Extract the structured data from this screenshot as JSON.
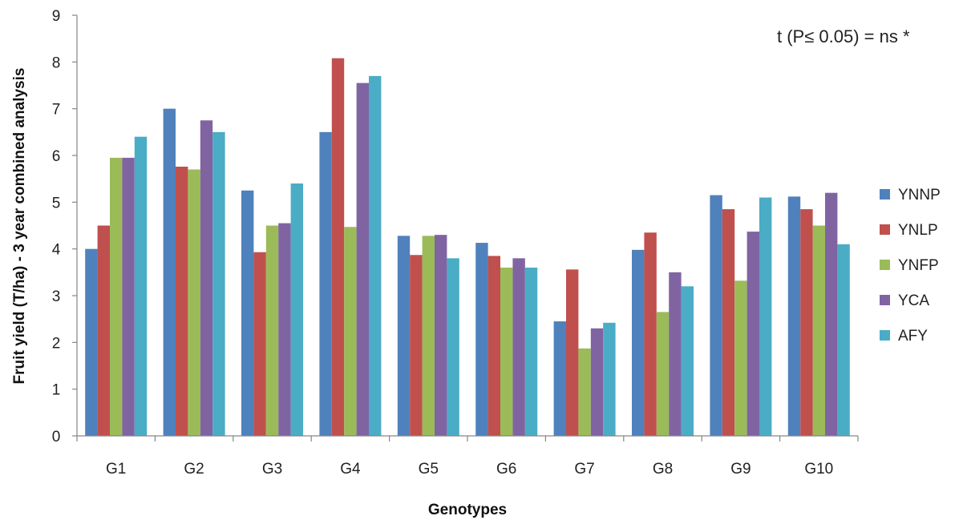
{
  "chart_data": {
    "type": "bar",
    "title": "",
    "xlabel": "Genotypes",
    "ylabel": "Fruit yield (T/ha) - 3 year combined analysis",
    "ylim": [
      0,
      9
    ],
    "yticks": [
      "0",
      "1",
      "2",
      "3",
      "4",
      "5",
      "6",
      "7",
      "8",
      "9"
    ],
    "grid": false,
    "legend_position": "right",
    "annotation": "t (P≤ 0.05) = ns *",
    "categories": [
      "G1",
      "G2",
      "G3",
      "G4",
      "G5",
      "G6",
      "G7",
      "G8",
      "G9",
      "G10"
    ],
    "series": [
      {
        "name": "YNNP",
        "color": "#4F81BD",
        "values": [
          4.0,
          7.0,
          5.25,
          6.5,
          4.28,
          4.13,
          2.45,
          3.98,
          5.15,
          5.12
        ]
      },
      {
        "name": "YNLP",
        "color": "#C0504D",
        "values": [
          4.5,
          5.76,
          3.93,
          8.08,
          3.87,
          3.85,
          3.56,
          4.35,
          4.85,
          4.85
        ]
      },
      {
        "name": "YNFP",
        "color": "#9BBB59",
        "values": [
          5.95,
          5.7,
          4.5,
          4.47,
          4.28,
          3.6,
          1.87,
          2.65,
          3.32,
          4.5
        ]
      },
      {
        "name": "YCA",
        "color": "#8064A2",
        "values": [
          5.95,
          6.75,
          4.55,
          7.55,
          4.3,
          3.8,
          2.3,
          3.5,
          4.37,
          5.2
        ]
      },
      {
        "name": "AFY",
        "color": "#4BACC6",
        "values": [
          6.4,
          6.5,
          5.4,
          7.7,
          3.8,
          3.6,
          2.42,
          3.2,
          5.1,
          4.1
        ]
      }
    ]
  }
}
